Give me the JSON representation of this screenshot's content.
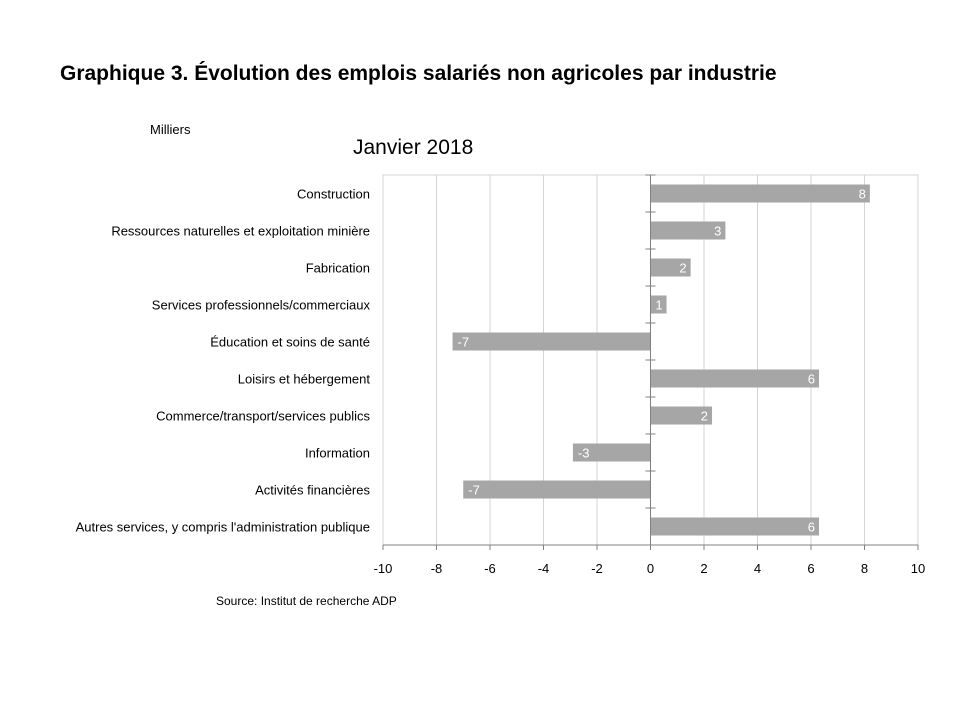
{
  "title": "Graphique 3. Évolution des emplois salariés non agricoles par industrie",
  "units_label": "Milliers",
  "subtitle": "Janvier 2018",
  "source": "Source: Institut de recherche ADP",
  "colors": {
    "bar": "#a6a6a6",
    "grid": "#d4d4d4",
    "axis": "#808080",
    "bar_label": "#ffffff"
  },
  "chart_data": {
    "type": "bar",
    "orientation": "horizontal",
    "categories": [
      "Construction",
      "Ressources naturelles et exploitation minière",
      "Fabrication",
      "Services professionnels/commerciaux",
      "Éducation et soins de santé",
      "Loisirs et hébergement",
      "Commerce/transport/services publics",
      "Information",
      "Activités financières",
      "Autres services, y compris l'administration publique"
    ],
    "values": [
      8.2,
      2.8,
      1.5,
      0.6,
      -7.4,
      6.3,
      2.3,
      -2.9,
      -7.0,
      6.3
    ],
    "data_labels": [
      "8",
      "3",
      "2",
      "1",
      "-7",
      "6",
      "2",
      "-3",
      "-7",
      "6"
    ],
    "xlim": [
      -10,
      10
    ],
    "xticks": [
      -10,
      -8,
      -6,
      -4,
      -2,
      0,
      2,
      4,
      6,
      8,
      10
    ],
    "xticklabels": [
      "-10",
      "-8",
      "-6",
      "-4",
      "-2",
      "0",
      "2",
      "4",
      "6",
      "8",
      "10"
    ],
    "grid": "vertical",
    "legend": "none"
  }
}
